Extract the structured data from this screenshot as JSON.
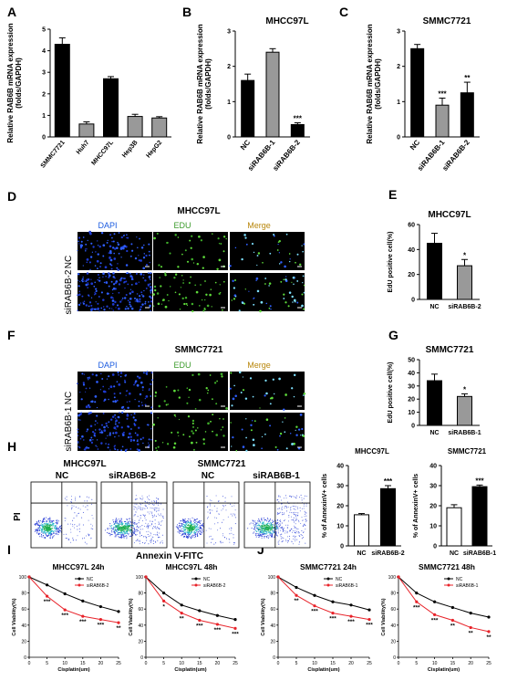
{
  "panels": {
    "A": {
      "letter": "A",
      "ylabel": [
        "Relative RAB6B mRNA expression",
        "(folds/GAPDH)"
      ]
    },
    "B": {
      "letter": "B",
      "ylabel": [
        "Relative RAB6B mRNA expression",
        "(folds/GAPDH)"
      ]
    },
    "C": {
      "letter": "C",
      "ylabel": [
        "Relative RAB6B mRNA expression",
        "(folds/GAPDH)"
      ]
    },
    "D": {
      "letter": "D",
      "title": "MHCC97L",
      "cols": [
        "DAPI",
        "EDU",
        "Merge"
      ],
      "rows": [
        "NC",
        "siRAB6B-2"
      ]
    },
    "E": {
      "letter": "E"
    },
    "F": {
      "letter": "F",
      "title": "SMMC7721",
      "cols": [
        "DAPI",
        "EDU",
        "Merge"
      ],
      "rows": [
        "NC",
        "siRAB6B-1"
      ]
    },
    "G": {
      "letter": "G"
    },
    "H": {
      "letter": "H",
      "groups": [
        "MHCC97L",
        "SMMC7721"
      ],
      "conds": [
        "NC",
        "siRAB6B-2",
        "NC",
        "siRAB6B-1"
      ],
      "xlabel": "Annexin V-FITC",
      "ylabel": "PI"
    },
    "I": {
      "letter": "I"
    },
    "J": {
      "letter": "J"
    }
  },
  "chart_data": [
    {
      "id": "A",
      "type": "bar",
      "categories": [
        "SMMC7721",
        "Huh7",
        "MHCC97L",
        "Hep3B",
        "HepG2"
      ],
      "values": [
        4.3,
        0.6,
        2.7,
        0.95,
        0.88
      ],
      "errors": [
        0.3,
        0.1,
        0.1,
        0.1,
        0.06
      ],
      "ylim": [
        0,
        5
      ],
      "yticks": [
        0,
        1,
        2,
        3,
        4,
        5
      ],
      "colors": [
        "#000000",
        "#999999",
        "#000000",
        "#999999",
        "#999999"
      ],
      "ylabel": "Relative RAB6B mRNA expression (folds/GAPDH)"
    },
    {
      "id": "B",
      "type": "bar",
      "title": "MHCC97L",
      "categories": [
        "NC",
        "siRAB6B-1",
        "siRAB6B-2"
      ],
      "values": [
        1.6,
        2.4,
        0.35
      ],
      "errors": [
        0.18,
        0.1,
        0.05
      ],
      "sig": [
        "",
        "",
        "***"
      ],
      "ylim": [
        0,
        3
      ],
      "yticks": [
        0,
        1,
        2,
        3
      ],
      "colors": [
        "#000000",
        "#999999",
        "#000000"
      ],
      "ylabel": "Relative RAB6B mRNA expression (folds/GAPDH)"
    },
    {
      "id": "C",
      "type": "bar",
      "title": "SMMC7721",
      "categories": [
        "NC",
        "siRAB6B-1",
        "siRAB6B-2"
      ],
      "values": [
        2.5,
        0.9,
        1.25
      ],
      "errors": [
        0.12,
        0.2,
        0.3
      ],
      "sig": [
        "",
        "***",
        "**"
      ],
      "ylim": [
        0,
        3
      ],
      "yticks": [
        0,
        1,
        2,
        3
      ],
      "colors": [
        "#000000",
        "#999999",
        "#000000"
      ],
      "ylabel": "Relative RAB6B mRNA expression (folds/GAPDH)"
    },
    {
      "id": "E",
      "type": "bar",
      "title": "MHCC97L",
      "categories": [
        "NC",
        "siRAB6B-2"
      ],
      "values": [
        45,
        27
      ],
      "errors": [
        8,
        5
      ],
      "sig": [
        "",
        "*"
      ],
      "ylim": [
        0,
        60
      ],
      "yticks": [
        0,
        20,
        40,
        60
      ],
      "colors": [
        "#000000",
        "#999999"
      ],
      "ylabel": "EdU positive cell(%)"
    },
    {
      "id": "G",
      "type": "bar",
      "title": "SMMC7721",
      "categories": [
        "NC",
        "siRAB6B-1"
      ],
      "values": [
        34,
        22
      ],
      "errors": [
        5,
        2
      ],
      "sig": [
        "",
        "*"
      ],
      "ylim": [
        0,
        50
      ],
      "yticks": [
        0,
        10,
        20,
        30,
        40,
        50
      ],
      "colors": [
        "#000000",
        "#999999"
      ],
      "ylabel": "EdU positive cell(%)"
    },
    {
      "id": "H1",
      "type": "bar",
      "title": "MHCC97L",
      "categories": [
        "NC",
        "siRAB6B-2"
      ],
      "values": [
        15.5,
        28.5
      ],
      "errors": [
        0.6,
        1.5
      ],
      "sig": [
        "",
        "***"
      ],
      "ylim": [
        0,
        40
      ],
      "yticks": [
        0,
        10,
        20,
        30,
        40
      ],
      "colors": [
        "#ffffff",
        "#000000"
      ],
      "ylabel": "% of AnnexinV+ cells"
    },
    {
      "id": "H2",
      "type": "bar",
      "title": "SMMC7721",
      "categories": [
        "NC",
        "siRAB6B-1"
      ],
      "values": [
        19,
        29.5
      ],
      "errors": [
        1.5,
        0.8
      ],
      "sig": [
        "",
        "***"
      ],
      "ylim": [
        0,
        40
      ],
      "yticks": [
        0,
        10,
        20,
        30,
        40
      ],
      "colors": [
        "#ffffff",
        "#000000"
      ],
      "ylabel": "% of AnnexinV+ cells"
    },
    {
      "id": "I1",
      "type": "line",
      "title": "MHCC97L 24h",
      "x": [
        0,
        5,
        10,
        15,
        20,
        25
      ],
      "series": [
        {
          "name": "NC",
          "values": [
            100,
            90,
            79,
            70,
            63,
            57
          ],
          "color": "#000000"
        },
        {
          "name": "siRAB6B-2",
          "values": [
            100,
            76,
            59,
            51,
            47,
            43
          ],
          "color": "#e8232a"
        }
      ],
      "sig": [
        "",
        "***",
        "***",
        "***",
        "***",
        "**"
      ],
      "ylim": [
        0,
        100
      ],
      "yticks": [
        0,
        20,
        40,
        60,
        80,
        100
      ],
      "xlabel": "Cisplatin(um)",
      "ylabel": "Cell Viability(%)"
    },
    {
      "id": "I2",
      "type": "line",
      "title": "MHCC97L 48h",
      "x": [
        0,
        5,
        10,
        15,
        20,
        25
      ],
      "series": [
        {
          "name": "NC",
          "values": [
            100,
            80,
            65,
            58,
            52,
            47
          ],
          "color": "#000000"
        },
        {
          "name": "siRAB6B-2",
          "values": [
            100,
            70,
            55,
            46,
            41,
            36
          ],
          "color": "#e8232a"
        }
      ],
      "sig": [
        "",
        "*",
        "**",
        "***",
        "***",
        "***"
      ],
      "ylim": [
        0,
        100
      ],
      "yticks": [
        0,
        20,
        40,
        60,
        80,
        100
      ],
      "xlabel": "Cisplatin(um)",
      "ylabel": "Cell Viability(%)"
    },
    {
      "id": "J1",
      "type": "line",
      "title": "SMMC7721 24h",
      "x": [
        0,
        5,
        10,
        15,
        20,
        25
      ],
      "series": [
        {
          "name": "NC",
          "values": [
            100,
            87,
            77,
            69,
            65,
            59
          ],
          "color": "#000000"
        },
        {
          "name": "siRAB6B-1",
          "values": [
            100,
            77,
            64,
            55,
            51,
            47
          ],
          "color": "#e8232a"
        }
      ],
      "sig": [
        "",
        "**",
        "***",
        "***",
        "***",
        "***"
      ],
      "ylim": [
        0,
        100
      ],
      "yticks": [
        0,
        20,
        40,
        60,
        80,
        100
      ],
      "xlabel": "Cisplatin(um)",
      "ylabel": "Cell Viability(%)"
    },
    {
      "id": "J2",
      "type": "line",
      "title": "SMMC7721 48h",
      "x": [
        0,
        5,
        10,
        15,
        20,
        25
      ],
      "series": [
        {
          "name": "NC",
          "values": [
            100,
            80,
            69,
            62,
            55,
            50
          ],
          "color": "#000000"
        },
        {
          "name": "siRAB6B-1",
          "values": [
            100,
            69,
            53,
            46,
            37,
            32
          ],
          "color": "#e8232a"
        }
      ],
      "sig": [
        "",
        "***",
        "***",
        "**",
        "**",
        "**"
      ],
      "ylim": [
        0,
        100
      ],
      "yticks": [
        0,
        20,
        40,
        60,
        80,
        100
      ],
      "xlabel": "Cisplatin(um)",
      "ylabel": "Cell Viability(%)"
    }
  ]
}
